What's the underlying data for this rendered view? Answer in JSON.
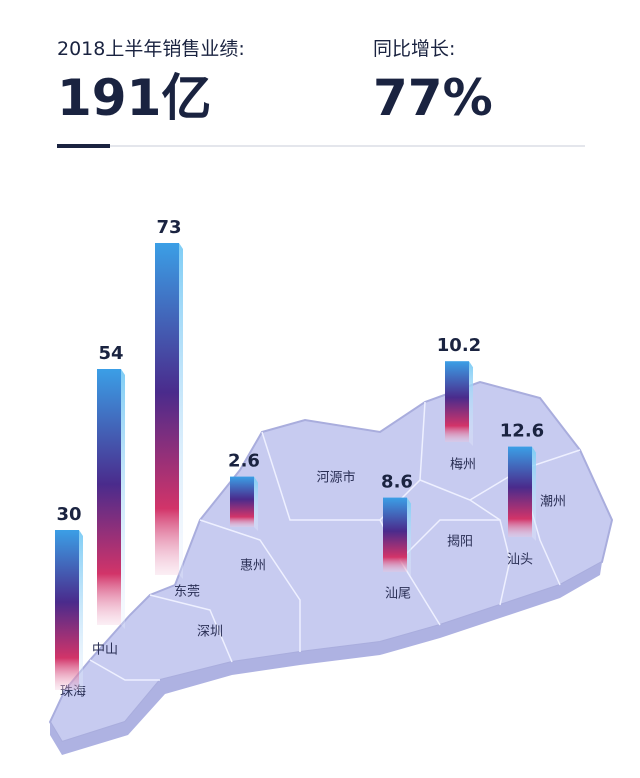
{
  "header": {
    "sales_label": "2018上半年销售业绩:",
    "sales_value": "191亿",
    "growth_label": "同比增长:",
    "growth_value": "77%"
  },
  "chart_data": {
    "type": "bar",
    "categories": [
      "珠海",
      "中山",
      "东莞",
      "惠州",
      "汕尾",
      "梅州",
      "汕头"
    ],
    "values": [
      30,
      54,
      73,
      2.6,
      8.6,
      10.2,
      12.6
    ],
    "map_labels": [
      "深圳",
      "河源市",
      "揭阳",
      "潮州"
    ]
  }
}
